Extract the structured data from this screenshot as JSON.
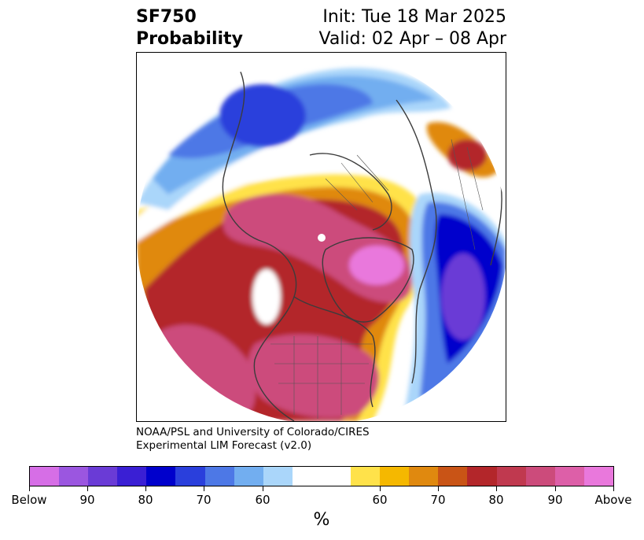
{
  "header": {
    "variable": "SF750",
    "product": "Probability",
    "init": "Init: Tue 18 Mar 2025",
    "valid": "Valid: 02 Apr – 08 Apr"
  },
  "credit": {
    "line1": "NOAA/PSL and University of Colorado/CIRES",
    "line2": "Experimental LIM Forecast (v2.0)"
  },
  "colorbar": {
    "unit": "%",
    "colors": [
      "#d66ee6",
      "#9b56e0",
      "#6a3bd6",
      "#3a1fd4",
      "#0000cc",
      "#2a3fdc",
      "#4d78e6",
      "#72aef0",
      "#aad6fa",
      "#ffffff",
      "#ffe24a",
      "#f5b800",
      "#e0890f",
      "#c95416",
      "#b3262a",
      "#c0394f",
      "#cc4b7b",
      "#dd5fa8",
      "#e978dc"
    ],
    "tick_labels": [
      "Below",
      "90",
      "80",
      "70",
      "60",
      "60",
      "70",
      "80",
      "90",
      "Above"
    ]
  },
  "map": {
    "projection": "north-polar-stereographic",
    "levels": [
      "below-90",
      "below-80",
      "below-70",
      "below-60",
      "neutral",
      "above-60",
      "above-70",
      "above-80",
      "above-90"
    ]
  }
}
